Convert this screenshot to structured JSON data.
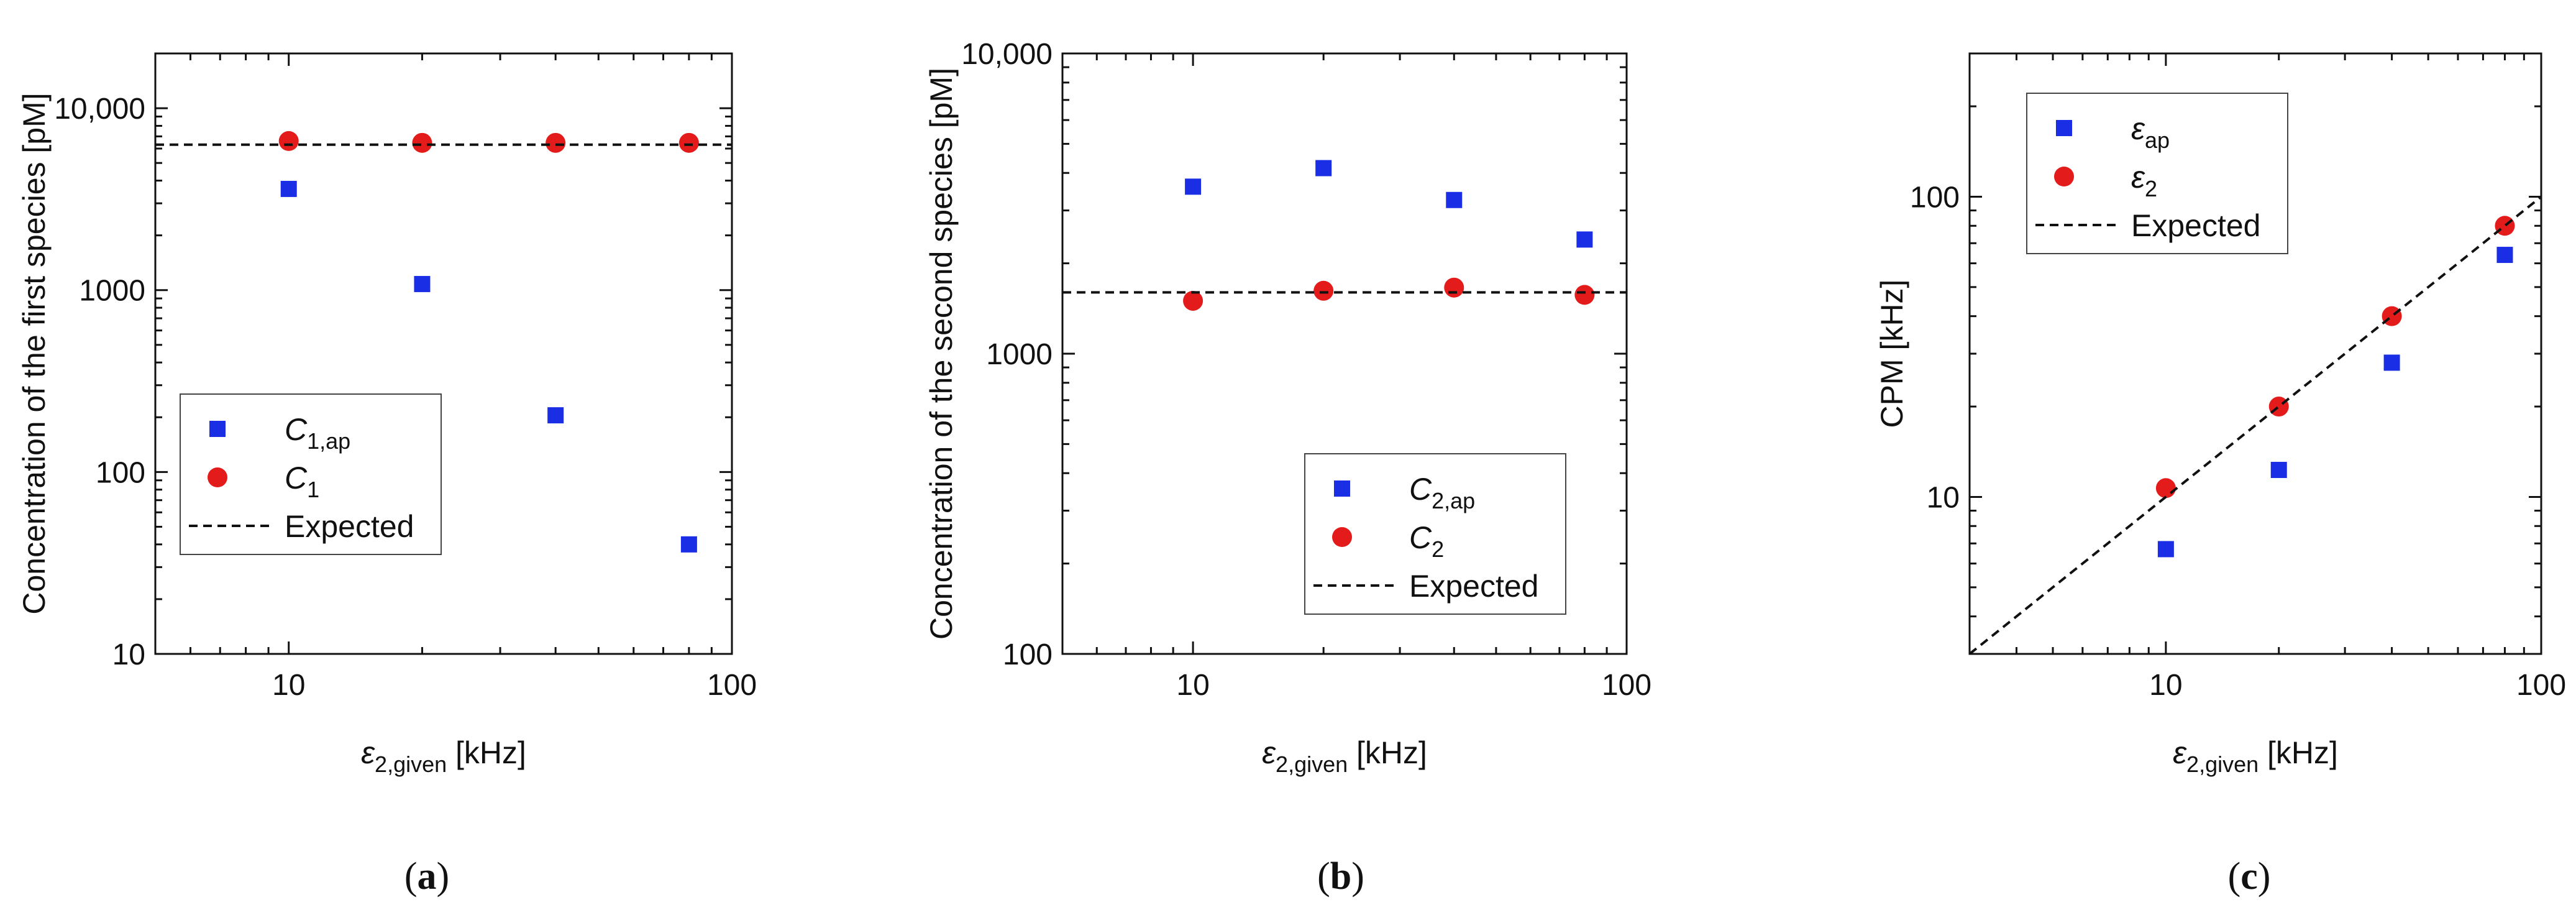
{
  "colors": {
    "series_ap": "#1a2ee6",
    "series_true": "#e31b1b",
    "expected_line": "#111111",
    "axis": "#111111"
  },
  "chart_data": [
    {
      "id": "a",
      "type": "scatter",
      "panel_label": "a",
      "xscale": "log",
      "yscale": "log",
      "xlim": [
        5,
        100
      ],
      "ylim": [
        10,
        20000
      ],
      "xticks": [
        10,
        100
      ],
      "xtick_labels": [
        "10",
        "100"
      ],
      "yticks": [
        10,
        100,
        1000,
        10000
      ],
      "ytick_labels": [
        "10",
        "100",
        "1000",
        "10,000"
      ],
      "xlabel": {
        "main": "ε",
        "sub": "2,given",
        "unit": " [kHz]"
      },
      "ylabel": "Concentration of the first species [pM]",
      "legend": {
        "position": "lower-left",
        "entries": [
          {
            "series": 0,
            "main": "C",
            "sub": "1,ap"
          },
          {
            "series": 1,
            "main": "C",
            "sub": "1"
          },
          {
            "series": 2,
            "main": "Expected",
            "sub": ""
          }
        ]
      },
      "series": [
        {
          "name": "C1,ap",
          "marker": "square",
          "color": "#1a2ee6",
          "x": [
            10,
            20,
            40,
            80
          ],
          "y": [
            3600,
            1080,
            205,
            40
          ]
        },
        {
          "name": "C1",
          "marker": "circle",
          "color": "#e31b1b",
          "x": [
            10,
            20,
            40,
            80
          ],
          "y": [
            6600,
            6450,
            6450,
            6450
          ]
        },
        {
          "name": "Expected",
          "marker": "dashed-line",
          "color": "#111111",
          "x": [
            5,
            100
          ],
          "y": [
            6300,
            6300
          ]
        }
      ]
    },
    {
      "id": "b",
      "type": "scatter",
      "panel_label": "b",
      "xscale": "log",
      "yscale": "log",
      "xlim": [
        5,
        100
      ],
      "ylim": [
        100,
        10000
      ],
      "xticks": [
        10,
        100
      ],
      "xtick_labels": [
        "10",
        "100"
      ],
      "yticks": [
        100,
        1000,
        10000
      ],
      "ytick_labels": [
        "100",
        "1000",
        "10,000"
      ],
      "xlabel": {
        "main": "ε",
        "sub": "2,given",
        "unit": " [kHz]"
      },
      "ylabel": "Concentration of the second species [pM]",
      "legend": {
        "position": "lower-right",
        "entries": [
          {
            "series": 0,
            "main": "C",
            "sub": "2,ap"
          },
          {
            "series": 1,
            "main": "C",
            "sub": "2"
          },
          {
            "series": 2,
            "main": "Expected",
            "sub": ""
          }
        ]
      },
      "series": [
        {
          "name": "C2,ap",
          "marker": "square",
          "color": "#1a2ee6",
          "x": [
            10,
            20,
            40,
            80
          ],
          "y": [
            3600,
            4150,
            3250,
            2400
          ]
        },
        {
          "name": "C2",
          "marker": "circle",
          "color": "#e31b1b",
          "x": [
            10,
            20,
            40,
            80
          ],
          "y": [
            1500,
            1620,
            1660,
            1570
          ]
        },
        {
          "name": "Expected",
          "marker": "dashed-line",
          "color": "#111111",
          "x": [
            5,
            100
          ],
          "y": [
            1600,
            1600
          ]
        }
      ]
    },
    {
      "id": "c",
      "type": "scatter",
      "panel_label": "c",
      "xscale": "log",
      "yscale": "log",
      "xlim": [
        3,
        100
      ],
      "ylim": [
        3,
        300
      ],
      "xticks": [
        10,
        100
      ],
      "xtick_labels": [
        "10",
        "100"
      ],
      "yticks": [
        10,
        100
      ],
      "ytick_labels": [
        "10",
        "100"
      ],
      "xlabel": {
        "main": "ε",
        "sub": "2,given",
        "unit": " [kHz]"
      },
      "ylabel": "CPM [kHz]",
      "legend": {
        "position": "top-left",
        "entries": [
          {
            "series": 0,
            "main": "ε",
            "sub": "ap"
          },
          {
            "series": 1,
            "main": "ε",
            "sub": "2"
          },
          {
            "series": 2,
            "main": "Expected",
            "sub": ""
          }
        ]
      },
      "series": [
        {
          "name": "εap",
          "marker": "square",
          "color": "#1a2ee6",
          "x": [
            10,
            20,
            40,
            80
          ],
          "y": [
            6.7,
            12.3,
            28,
            64
          ]
        },
        {
          "name": "ε2",
          "marker": "circle",
          "color": "#e31b1b",
          "x": [
            10,
            20,
            40,
            80
          ],
          "y": [
            10.7,
            20,
            40,
            80
          ]
        },
        {
          "name": "Expected",
          "marker": "dashed-line",
          "color": "#111111",
          "x": [
            3,
            100
          ],
          "y": [
            3,
            100
          ]
        }
      ]
    }
  ]
}
